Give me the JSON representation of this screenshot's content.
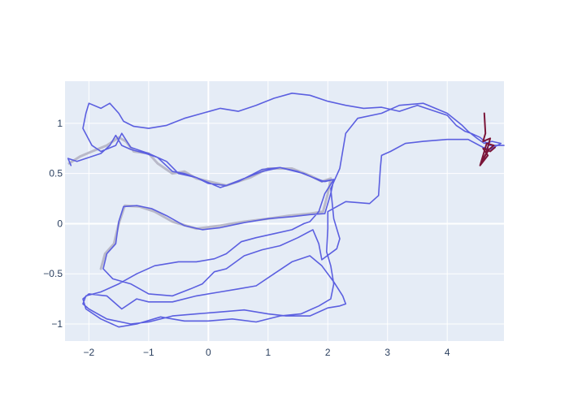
{
  "chart_data": {
    "type": "line",
    "title": "",
    "xlabel": "",
    "ylabel": "",
    "xlim": [
      -2.4,
      4.95
    ],
    "ylim": [
      -1.17,
      1.42
    ],
    "x_ticks": [
      -2,
      -1,
      0,
      1,
      2,
      3,
      4
    ],
    "y_ticks": [
      -1,
      -0.5,
      0,
      0.5,
      1
    ],
    "x_tick_labels": [
      "−2",
      "−1",
      "0",
      "1",
      "2",
      "3",
      "4"
    ],
    "y_tick_labels": [
      "−1",
      "−0.5",
      "0",
      "0.5",
      "1"
    ],
    "grid": true,
    "colors": {
      "plot_bg": "#e5ecf6",
      "grid": "#ffffff",
      "series_main": "#5b5fe0",
      "series_ghost": "#b9b9c9",
      "series_cluster": "#7a1538"
    },
    "series": [
      {
        "role": "ghost",
        "points": [
          [
            -2.33,
            0.6
          ],
          [
            -2.15,
            0.67
          ],
          [
            -1.95,
            0.72
          ],
          [
            -1.7,
            0.78
          ],
          [
            -1.5,
            0.86
          ],
          [
            -1.38,
            0.82
          ],
          [
            -1.25,
            0.72
          ],
          [
            -1.0,
            0.7
          ],
          [
            -0.85,
            0.6
          ],
          [
            -0.6,
            0.5
          ],
          [
            -0.4,
            0.52
          ],
          [
            -0.2,
            0.45
          ],
          [
            0.3,
            0.38
          ],
          [
            0.7,
            0.46
          ],
          [
            1.0,
            0.55
          ],
          [
            1.4,
            0.55
          ],
          [
            1.7,
            0.48
          ],
          [
            1.9,
            0.42
          ],
          [
            2.05,
            0.45
          ],
          [
            2.0,
            0.3
          ],
          [
            1.92,
            0.12
          ],
          [
            1.7,
            0.1
          ],
          [
            1.35,
            0.08
          ],
          [
            1.0,
            0.05
          ],
          [
            0.6,
            0.02
          ],
          [
            0.2,
            -0.02
          ],
          [
            -0.2,
            -0.05
          ],
          [
            -0.6,
            0.02
          ],
          [
            -0.9,
            0.12
          ],
          [
            -1.15,
            0.17
          ],
          [
            -1.4,
            0.18
          ],
          [
            -1.5,
            0.0
          ],
          [
            -1.58,
            -0.2
          ],
          [
            -1.73,
            -0.3
          ],
          [
            -1.8,
            -0.45
          ]
        ]
      },
      {
        "role": "main",
        "points": [
          [
            -2.3,
            0.58
          ],
          [
            -2.35,
            0.65
          ],
          [
            -2.2,
            0.62
          ],
          [
            -2.0,
            0.66
          ],
          [
            -1.8,
            0.7
          ],
          [
            -1.65,
            0.78
          ],
          [
            -1.55,
            0.88
          ],
          [
            -1.45,
            0.78
          ],
          [
            -1.3,
            0.74
          ],
          [
            -1.05,
            0.7
          ],
          [
            -0.85,
            0.66
          ],
          [
            -0.6,
            0.52
          ],
          [
            -0.4,
            0.5
          ],
          [
            -0.2,
            0.46
          ],
          [
            0.0,
            0.4
          ],
          [
            0.3,
            0.38
          ],
          [
            0.6,
            0.45
          ],
          [
            0.9,
            0.52
          ],
          [
            1.2,
            0.56
          ],
          [
            1.5,
            0.52
          ],
          [
            1.75,
            0.46
          ],
          [
            1.95,
            0.42
          ],
          [
            2.1,
            0.44
          ],
          [
            2.05,
            0.3
          ],
          [
            1.95,
            0.1
          ],
          [
            1.7,
            0.09
          ],
          [
            1.4,
            0.07
          ],
          [
            1.0,
            0.05
          ],
          [
            0.6,
            0.01
          ],
          [
            0.2,
            -0.04
          ],
          [
            -0.1,
            -0.06
          ],
          [
            -0.4,
            -0.02
          ],
          [
            -0.7,
            0.08
          ],
          [
            -0.95,
            0.15
          ],
          [
            -1.2,
            0.18
          ],
          [
            -1.42,
            0.17
          ],
          [
            -1.5,
            0.02
          ],
          [
            -1.55,
            -0.2
          ],
          [
            -1.7,
            -0.3
          ],
          [
            -1.76,
            -0.45
          ],
          [
            -1.6,
            -0.55
          ],
          [
            -1.3,
            -0.6
          ],
          [
            -1.0,
            -0.7
          ],
          [
            -0.6,
            -0.72
          ],
          [
            -0.3,
            -0.65
          ],
          [
            -0.1,
            -0.6
          ],
          [
            0.1,
            -0.48
          ],
          [
            0.3,
            -0.45
          ],
          [
            0.6,
            -0.32
          ],
          [
            0.9,
            -0.26
          ],
          [
            1.2,
            -0.22
          ],
          [
            1.5,
            -0.14
          ],
          [
            1.75,
            -0.06
          ],
          [
            1.85,
            -0.2
          ],
          [
            1.9,
            -0.36
          ],
          [
            2.15,
            -0.25
          ],
          [
            2.2,
            -0.15
          ],
          [
            2.1,
            0.05
          ],
          [
            2.05,
            0.35
          ],
          [
            2.2,
            0.55
          ],
          [
            2.3,
            0.9
          ],
          [
            2.5,
            1.05
          ],
          [
            2.9,
            1.1
          ],
          [
            3.2,
            1.18
          ],
          [
            3.6,
            1.2
          ],
          [
            4.0,
            1.1
          ],
          [
            4.25,
            0.98
          ],
          [
            4.35,
            0.92
          ],
          [
            4.5,
            0.85
          ],
          [
            4.62,
            0.8
          ],
          [
            4.75,
            0.82
          ],
          [
            4.9,
            0.8
          ],
          [
            4.72,
            0.74
          ],
          [
            4.6,
            0.76
          ],
          [
            4.35,
            0.84
          ],
          [
            4.0,
            0.84
          ],
          [
            3.6,
            0.82
          ],
          [
            3.3,
            0.8
          ],
          [
            3.05,
            0.72
          ],
          [
            2.9,
            0.68
          ],
          [
            2.88,
            0.55
          ],
          [
            2.85,
            0.28
          ],
          [
            2.7,
            0.2
          ],
          [
            2.3,
            0.22
          ],
          [
            2.0,
            0.12
          ],
          [
            2.0,
            -0.05
          ],
          [
            1.98,
            -0.28
          ],
          [
            2.05,
            -0.42
          ],
          [
            2.1,
            -0.6
          ],
          [
            2.05,
            -0.75
          ],
          [
            1.85,
            -0.82
          ],
          [
            1.55,
            -0.9
          ],
          [
            1.2,
            -0.92
          ],
          [
            0.8,
            -0.98
          ],
          [
            0.4,
            -0.95
          ],
          [
            0.0,
            -0.97
          ],
          [
            -0.4,
            -0.97
          ],
          [
            -0.8,
            -0.93
          ],
          [
            -1.2,
            -1.0
          ],
          [
            -1.5,
            -1.03
          ],
          [
            -1.8,
            -0.95
          ],
          [
            -2.05,
            -0.85
          ],
          [
            -2.1,
            -0.75
          ],
          [
            -2.0,
            -0.7
          ],
          [
            -1.7,
            -0.72
          ],
          [
            -1.45,
            -0.85
          ],
          [
            -1.2,
            -0.75
          ],
          [
            -1.0,
            -0.78
          ],
          [
            -0.6,
            -0.78
          ],
          [
            -0.2,
            -0.72
          ],
          [
            0.2,
            -0.68
          ],
          [
            0.5,
            -0.65
          ],
          [
            0.8,
            -0.62
          ],
          [
            1.1,
            -0.5
          ],
          [
            1.4,
            -0.38
          ],
          [
            1.7,
            -0.32
          ],
          [
            1.9,
            -0.42
          ],
          [
            2.1,
            -0.58
          ],
          [
            2.25,
            -0.72
          ],
          [
            2.3,
            -0.8
          ],
          [
            2.2,
            -0.82
          ],
          [
            2.0,
            -0.84
          ],
          [
            1.7,
            -0.92
          ],
          [
            1.3,
            -0.92
          ],
          [
            1.0,
            -0.9
          ],
          [
            0.6,
            -0.86
          ],
          [
            0.2,
            -0.88
          ],
          [
            -0.2,
            -0.9
          ],
          [
            -0.6,
            -0.92
          ],
          [
            -1.0,
            -0.98
          ],
          [
            -1.3,
            -1.0
          ],
          [
            -1.7,
            -0.95
          ],
          [
            -2.0,
            -0.85
          ],
          [
            -2.1,
            -0.8
          ],
          [
            -2.05,
            -0.72
          ],
          [
            -1.8,
            -0.68
          ],
          [
            -1.5,
            -0.6
          ],
          [
            -1.2,
            -0.5
          ],
          [
            -0.9,
            -0.42
          ],
          [
            -0.5,
            -0.38
          ],
          [
            -0.2,
            -0.38
          ],
          [
            0.1,
            -0.35
          ],
          [
            0.3,
            -0.3
          ],
          [
            0.55,
            -0.18
          ],
          [
            0.8,
            -0.14
          ],
          [
            1.1,
            -0.1
          ],
          [
            1.4,
            -0.06
          ],
          [
            1.6,
            0.0
          ],
          [
            1.7,
            0.02
          ],
          [
            1.85,
            0.12
          ],
          [
            1.95,
            0.3
          ],
          [
            2.1,
            0.44
          ],
          [
            1.9,
            0.42
          ],
          [
            1.6,
            0.5
          ],
          [
            1.2,
            0.56
          ],
          [
            0.9,
            0.54
          ],
          [
            0.5,
            0.42
          ],
          [
            0.2,
            0.36
          ],
          [
            -0.2,
            0.46
          ],
          [
            -0.5,
            0.5
          ],
          [
            -0.7,
            0.62
          ],
          [
            -1.0,
            0.7
          ],
          [
            -1.3,
            0.76
          ],
          [
            -1.45,
            0.9
          ],
          [
            -1.55,
            0.78
          ],
          [
            -1.8,
            0.72
          ],
          [
            -1.95,
            0.78
          ],
          [
            -2.1,
            0.95
          ],
          [
            -2.05,
            1.1
          ],
          [
            -2.0,
            1.2
          ],
          [
            -1.8,
            1.15
          ],
          [
            -1.65,
            1.2
          ],
          [
            -1.5,
            1.1
          ],
          [
            -1.42,
            1.02
          ],
          [
            -1.25,
            0.97
          ],
          [
            -1.0,
            0.95
          ],
          [
            -0.7,
            0.98
          ],
          [
            -0.4,
            1.05
          ],
          [
            -0.1,
            1.1
          ],
          [
            0.2,
            1.15
          ],
          [
            0.5,
            1.12
          ],
          [
            0.8,
            1.18
          ],
          [
            1.1,
            1.25
          ],
          [
            1.4,
            1.3
          ],
          [
            1.7,
            1.28
          ],
          [
            2.0,
            1.22
          ],
          [
            2.3,
            1.18
          ],
          [
            2.6,
            1.15
          ],
          [
            2.9,
            1.16
          ],
          [
            3.2,
            1.12
          ],
          [
            3.5,
            1.18
          ],
          [
            3.8,
            1.12
          ],
          [
            4.0,
            1.08
          ],
          [
            4.15,
            0.98
          ],
          [
            4.3,
            0.92
          ],
          [
            4.4,
            0.9
          ],
          [
            4.55,
            0.86
          ],
          [
            4.7,
            0.78
          ],
          [
            4.95,
            0.78
          ]
        ]
      },
      {
        "role": "cluster",
        "points": [
          [
            4.62,
            1.1
          ],
          [
            4.64,
            0.9
          ],
          [
            4.6,
            0.82
          ],
          [
            4.72,
            0.85
          ],
          [
            4.65,
            0.7
          ],
          [
            4.58,
            0.62
          ],
          [
            4.7,
            0.74
          ],
          [
            4.78,
            0.78
          ],
          [
            4.66,
            0.8
          ],
          [
            4.55,
            0.58
          ],
          [
            4.68,
            0.68
          ],
          [
            4.6,
            0.75
          ],
          [
            4.72,
            0.72
          ],
          [
            4.8,
            0.76
          ]
        ]
      }
    ]
  }
}
